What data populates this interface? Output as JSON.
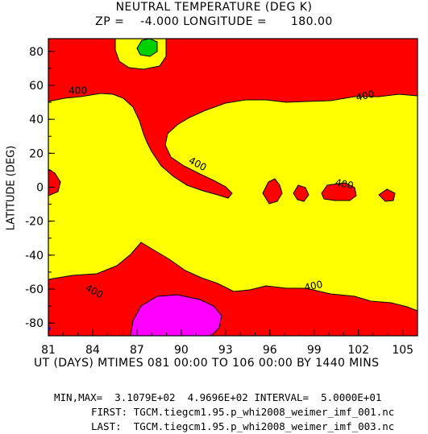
{
  "header": {
    "title": "NEUTRAL TEMPERATURE (DEG K)",
    "subtitle": "ZP =    -4.000 LONGITUDE =      180.00"
  },
  "axes": {
    "ylabel": "LATITUDE (DEG)",
    "xlabel": "UT (DAYS) MTIMES 081 00:00 TO 106 00:00 BY 1440 MINS"
  },
  "footer": {
    "minmax": "MIN,MAX=  3.1079E+02  4.9696E+02 INTERVAL=  5.0000E+01",
    "first": "FIRST: TGCM.tiegcm1.95.p_whi2008_weimer_imf_001.nc",
    "last": "LAST:  TGCM.tiegcm1.95.p_whi2008_weimer_imf_003.nc"
  },
  "chart_data": {
    "type": "contour",
    "title": "NEUTRAL TEMPERATURE (DEG K)",
    "xlabel": "UT (DAYS) MTIMES 081 00:00 TO 106 00:00 BY 1440 MINS",
    "ylabel": "LATITUDE (DEG)",
    "xlim": [
      81,
      106
    ],
    "ylim": [
      -87.5,
      87.5
    ],
    "x_ticks": [
      "81",
      "84",
      "87",
      "90",
      "93",
      "96",
      "99",
      "102",
      "105"
    ],
    "y_ticks": [
      "80",
      "60",
      "40",
      "20",
      "0",
      "-20",
      "-40",
      "-60",
      "-80"
    ],
    "colors": {
      "below_400": "#ff0000",
      "400_to_450": "#ffff00",
      "low_min": "#ff00ff",
      "high_max": "#00d000",
      "tiny_blue": "#0000ff"
    },
    "contour_labels": [
      {
        "text": "400",
        "x": 83,
        "y": 55
      },
      {
        "text": "400",
        "x": 91,
        "y": 12
      },
      {
        "text": "400",
        "x": 101,
        "y": 0
      },
      {
        "text": "400",
        "x": 102.5,
        "y": 52
      },
      {
        "text": "400",
        "x": 99,
        "y": -60
      },
      {
        "text": "400",
        "x": 84,
        "y": -63
      }
    ],
    "min": 310.79,
    "max": 496.96,
    "interval": 50
  }
}
